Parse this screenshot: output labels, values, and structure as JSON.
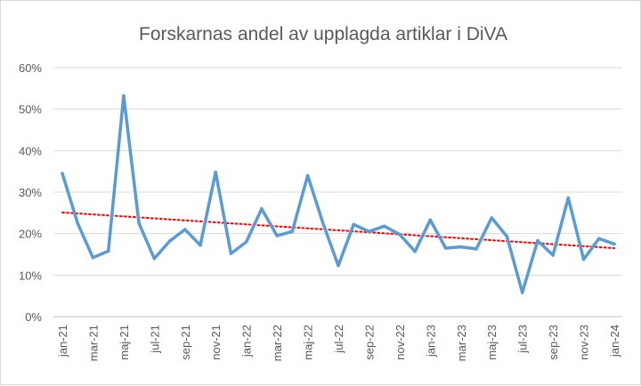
{
  "chart_data": {
    "type": "line",
    "title": "Forskarnas andel av upplagda artiklar i DiVA",
    "xlabel": "",
    "ylabel": "",
    "ylim": [
      0,
      60
    ],
    "y_ticks": [
      "0%",
      "10%",
      "20%",
      "30%",
      "40%",
      "50%",
      "60%"
    ],
    "y_tick_values": [
      0,
      10,
      20,
      30,
      40,
      50,
      60
    ],
    "grid": "horizontal",
    "categories": [
      "jan-21",
      "feb-21",
      "mar-21",
      "apr-21",
      "maj-21",
      "jun-21",
      "jul-21",
      "aug-21",
      "sep-21",
      "okt-21",
      "nov-21",
      "dec-21",
      "jan-22",
      "feb-22",
      "mar-22",
      "apr-22",
      "maj-22",
      "jun-22",
      "jul-22",
      "aug-22",
      "sep-22",
      "okt-22",
      "nov-22",
      "dec-22",
      "jan-23",
      "feb-23",
      "mar-23",
      "apr-23",
      "maj-23",
      "jun-23",
      "jul-23",
      "aug-23",
      "sep-23",
      "okt-23",
      "nov-23",
      "dec-23",
      "jan-24"
    ],
    "x_tick_labels": [
      "jan-21",
      "mar-21",
      "maj-21",
      "jul-21",
      "sep-21",
      "nov-21",
      "jan-22",
      "mar-22",
      "maj-22",
      "jul-22",
      "sep-22",
      "nov-22",
      "jan-23",
      "mar-23",
      "maj-23",
      "jul-23",
      "sep-23",
      "nov-23",
      "jan-24"
    ],
    "series": [
      {
        "color": "#5b9bd5",
        "values": [
          34.5,
          22.5,
          14.2,
          15.8,
          53.2,
          22.5,
          14.0,
          18.2,
          21.0,
          17.2,
          34.8,
          15.2,
          18.0,
          26.0,
          19.5,
          20.5,
          34.0,
          22.5,
          12.3,
          22.2,
          20.5,
          21.8,
          19.8,
          15.7,
          23.3,
          16.5,
          16.8,
          16.3,
          23.8,
          19.3,
          5.8,
          18.3,
          14.8,
          28.6,
          13.8,
          18.8,
          17.5
        ]
      }
    ],
    "trendline": {
      "type": "linear",
      "color": "#ff0000",
      "style": "dotted",
      "start_value": 25.1,
      "end_value": 16.5
    }
  }
}
